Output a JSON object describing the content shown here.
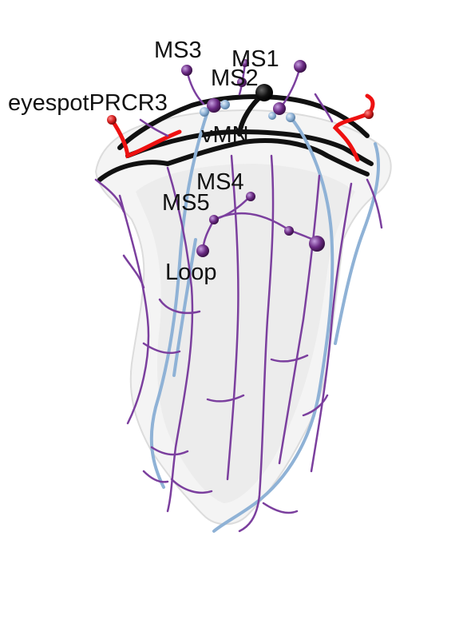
{
  "figure": {
    "labels": {
      "ms3": "MS3",
      "ms1": "MS1",
      "ms2": "MS2",
      "eyespot": "eyespotPRCR3",
      "vmn": "vMN",
      "ms4": "MS4",
      "ms5": "MS5",
      "loop": "Loop"
    },
    "colors": {
      "background": "#ffffff",
      "body_outline": "#e8e8e8",
      "neurite_purple": "#7b3f9e",
      "neurite_blue": "#8fb2d6",
      "neurite_black": "#111111",
      "neurite_red": "#ee1111",
      "soma_purple": "#6a2a83",
      "soma_blue": "#8fb2d6",
      "soma_black": "#000000",
      "soma_red": "#d62020"
    },
    "legend": "none"
  }
}
